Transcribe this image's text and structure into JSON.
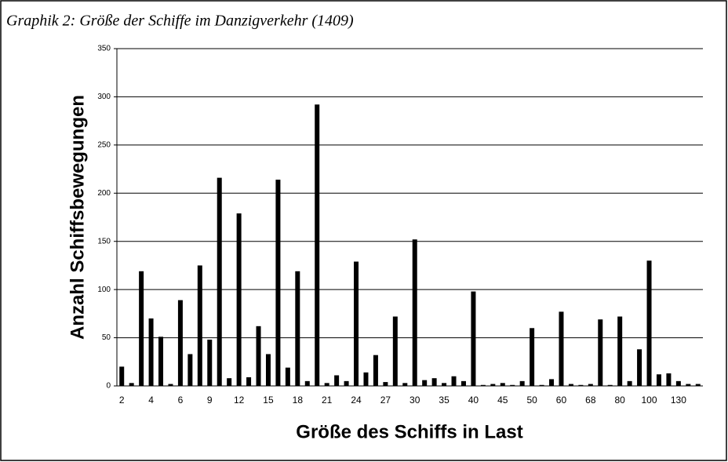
{
  "chart_data": {
    "type": "bar",
    "title": "Graphik 2: Größe der Schiffe im Danzigverkehr (1409)",
    "x_label": "Größe des Schiffs in Last",
    "y_label": "Anzahl Schiffsbewegungen",
    "categories": [
      "2",
      null,
      null,
      "4",
      null,
      null,
      "6",
      null,
      null,
      "9",
      null,
      null,
      "12",
      null,
      null,
      "15",
      null,
      null,
      "18",
      null,
      null,
      "21",
      null,
      null,
      "24",
      null,
      null,
      "27",
      null,
      null,
      "30",
      null,
      null,
      "35",
      null,
      null,
      "40",
      null,
      null,
      "45",
      null,
      null,
      "50",
      null,
      null,
      "60",
      null,
      null,
      "68",
      null,
      null,
      "80",
      null,
      null,
      "100",
      null,
      null,
      "130",
      null,
      null
    ],
    "values": [
      20,
      3,
      119,
      70,
      51,
      2,
      89,
      33,
      125,
      48,
      216,
      8,
      179,
      9,
      62,
      33,
      214,
      19,
      119,
      5,
      292,
      3,
      11,
      5,
      129,
      14,
      32,
      4,
      72,
      3,
      152,
      6,
      8,
      3,
      10,
      5,
      98,
      1,
      2,
      3,
      1,
      5,
      60,
      1,
      7,
      77,
      2,
      1,
      2,
      69,
      1,
      72,
      5,
      38,
      130,
      12,
      13,
      5,
      2,
      2
    ],
    "color": "#000000",
    "ylim": [
      0,
      350
    ],
    "yticks": [
      0,
      50,
      100,
      150,
      200,
      250,
      300,
      350
    ],
    "grid": true
  }
}
